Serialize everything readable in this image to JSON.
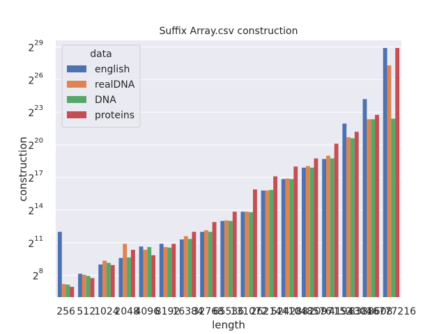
{
  "chart_data": {
    "type": "bar",
    "title": "Suffix Array.csv construction",
    "xlabel": "length",
    "ylabel": "construction",
    "y_scale": "log2",
    "ylim_exponent": [
      6.0,
      29.6
    ],
    "y_ticks": [
      {
        "base": "2",
        "exp": "8",
        "value": 8
      },
      {
        "base": "2",
        "exp": "11",
        "value": 11
      },
      {
        "base": "2",
        "exp": "14",
        "value": 14
      },
      {
        "base": "2",
        "exp": "17",
        "value": 17
      },
      {
        "base": "2",
        "exp": "20",
        "value": 20
      },
      {
        "base": "2",
        "exp": "23",
        "value": 23
      },
      {
        "base": "2",
        "exp": "26",
        "value": 26
      },
      {
        "base": "2",
        "exp": "29",
        "value": 29
      }
    ],
    "grid": true,
    "legend": {
      "title": "data",
      "position": "top-left"
    },
    "categories": [
      "256",
      "512",
      "1024",
      "2048",
      "4096",
      "8192",
      "16384",
      "32768",
      "65536",
      "131072",
      "262144",
      "524288",
      "1048576",
      "2097152",
      "4194304",
      "8388608",
      "16777216"
    ],
    "value_unit": "log2(construction)",
    "series": [
      {
        "name": "english",
        "color": "#4c72b0",
        "values": [
          12.0,
          8.15,
          9.0,
          9.6,
          10.65,
          10.9,
          11.3,
          12.0,
          13.0,
          13.85,
          15.8,
          16.85,
          17.9,
          18.7,
          21.95,
          24.2,
          28.9
        ]
      },
      {
        "name": "realDNA",
        "color": "#dd8452",
        "values": [
          7.2,
          8.05,
          9.35,
          10.9,
          10.35,
          10.6,
          11.6,
          12.15,
          13.05,
          13.85,
          15.8,
          16.9,
          18.05,
          19.0,
          20.7,
          22.35,
          27.3
        ]
      },
      {
        "name": "DNA",
        "color": "#55a868",
        "values": [
          7.15,
          7.95,
          9.15,
          9.65,
          10.6,
          10.55,
          11.35,
          12.0,
          13.0,
          13.8,
          15.85,
          16.85,
          17.9,
          18.75,
          20.6,
          22.35,
          22.4
        ]
      },
      {
        "name": "proteins",
        "color": "#c44e52",
        "values": [
          6.95,
          7.75,
          8.95,
          10.35,
          9.85,
          10.9,
          12.0,
          12.9,
          13.85,
          15.9,
          17.1,
          18.0,
          18.75,
          20.1,
          21.2,
          22.75,
          28.9
        ]
      }
    ]
  }
}
